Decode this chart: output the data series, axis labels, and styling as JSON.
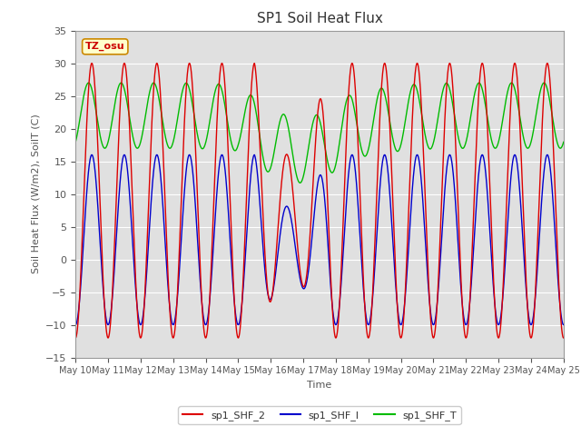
{
  "title": "SP1 Soil Heat Flux",
  "xlabel": "Time",
  "ylabel": "Soil Heat Flux (W/m2), SoilT (C)",
  "ylim": [
    -15,
    35
  ],
  "x_tick_labels": [
    "May 10",
    "May 11",
    "May 12",
    "May 13",
    "May 14",
    "May 15",
    "May 16",
    "May 17",
    "May 18",
    "May 19",
    "May 20",
    "May 21",
    "May 22",
    "May 23",
    "May 24",
    "May 25"
  ],
  "tz_label": "TZ_osu",
  "background_color": "#e0e0e0",
  "line_shf2_color": "#dd0000",
  "line_shf1_color": "#0000cc",
  "line_shft_color": "#00bb00",
  "legend_labels": [
    "sp1_SHF_2",
    "sp1_SHF_l",
    "sp1_SHF_T"
  ],
  "title_fontsize": 11,
  "axis_label_fontsize": 8,
  "tick_fontsize": 8,
  "legend_fontsize": 8
}
